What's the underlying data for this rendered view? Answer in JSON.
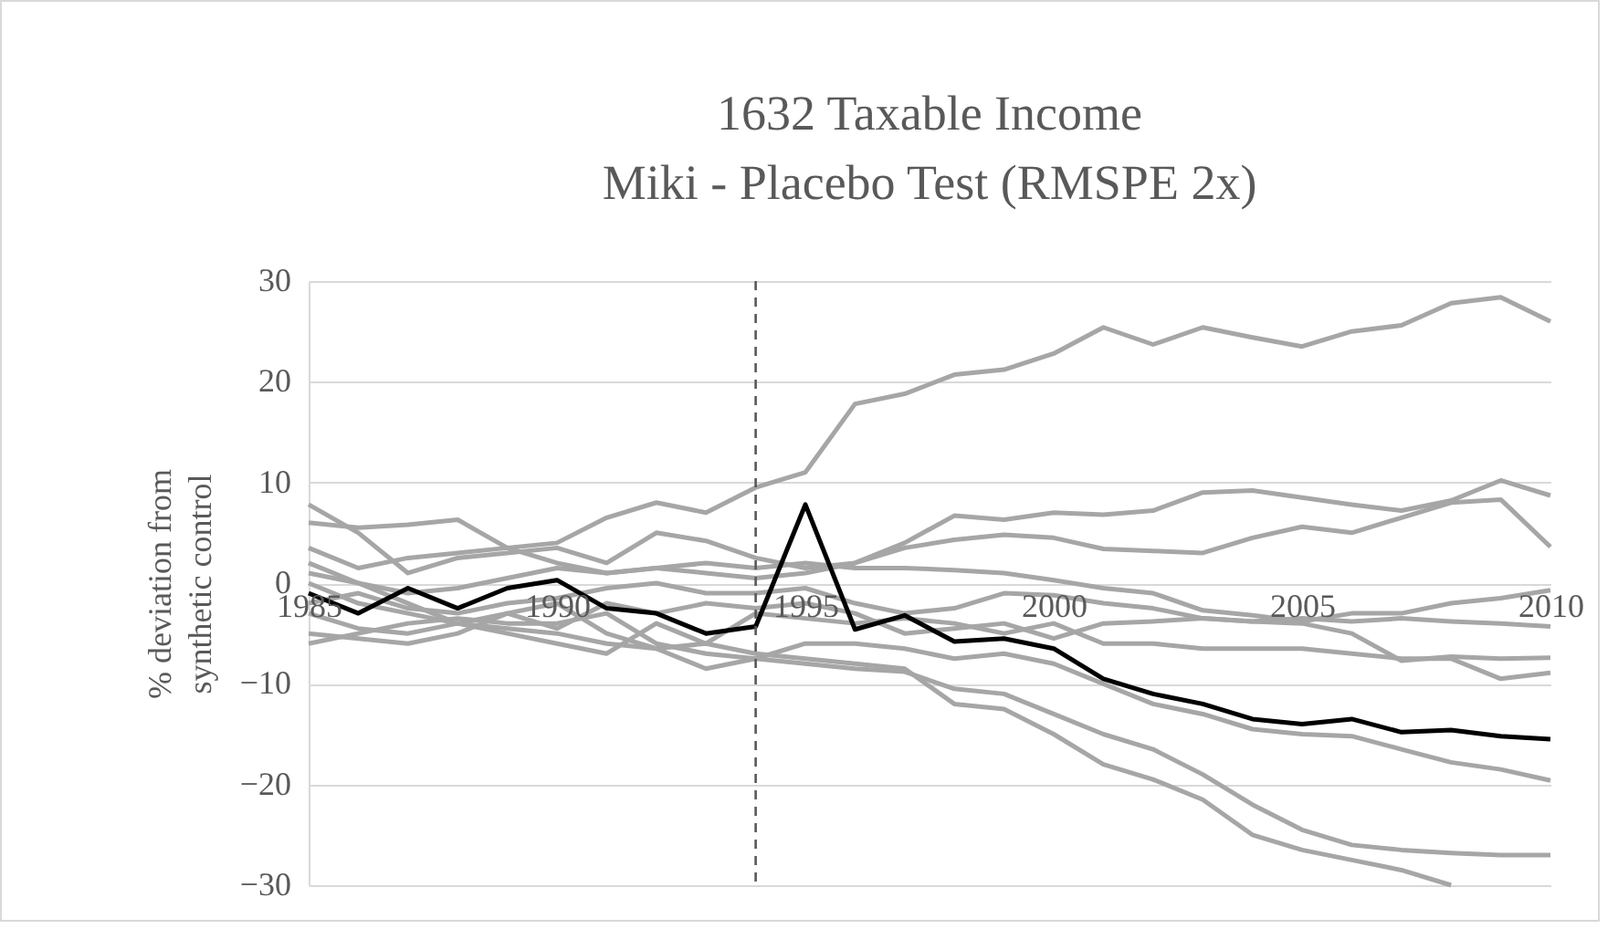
{
  "chart_data": {
    "type": "line",
    "title": "1632 Taxable Income\nMiki - Placebo Test (RMSPE 2x)",
    "ylabel": "% deviation from synthetic control",
    "x": [
      1985,
      1986,
      1987,
      1988,
      1989,
      1990,
      1991,
      1992,
      1993,
      1994,
      1995,
      1996,
      1997,
      1998,
      1999,
      2000,
      2001,
      2002,
      2003,
      2004,
      2005,
      2006,
      2007,
      2008,
      2009,
      2010
    ],
    "xlim": [
      1985,
      2010
    ],
    "xticks": [
      1985,
      1990,
      1995,
      2000,
      2005,
      2010
    ],
    "ylim": [
      -30,
      30
    ],
    "yticks": [
      -30,
      -20,
      -10,
      0,
      10,
      20,
      30
    ],
    "grid": "y",
    "legend": false,
    "line_style": "solid",
    "marker": "none",
    "series": [
      {
        "color": "#a6a6a6",
        "values": [
          3.5,
          1.5,
          2.5,
          3,
          3.5,
          4,
          6.5,
          8,
          7,
          9.5,
          11,
          17.8,
          18.8,
          20.7,
          21.2,
          22.8,
          25.4,
          23.7,
          25.4,
          24.4,
          23.5,
          25,
          25.6,
          27.8,
          28.4,
          26
        ]
      },
      {
        "color": "#a6a6a6",
        "values": [
          6,
          5.5,
          5.8,
          6.3,
          3.5,
          2,
          1,
          1.5,
          1,
          0.5,
          1,
          2,
          4,
          6.7,
          6.3,
          7,
          6.8,
          7.2,
          9,
          9.2,
          8.5,
          7.8,
          7.2,
          8.2,
          10.2,
          8.7
        ]
      },
      {
        "color": "#a6a6a6",
        "values": [
          7.8,
          5,
          1,
          2.5,
          3,
          3.5,
          2,
          5,
          4.2,
          2.5,
          1.5,
          2,
          3.5,
          4.3,
          4.8,
          4.5,
          3.4,
          3.2,
          3,
          4.5,
          5.6,
          5,
          6.5,
          8,
          8.3,
          3.6
        ]
      },
      {
        "color": "#a6a6a6",
        "values": [
          1,
          0,
          -1,
          -0.5,
          0.5,
          1.5,
          1,
          1.5,
          2,
          1.5,
          2,
          1.5,
          1.5,
          1.3,
          1,
          0.3,
          -0.5,
          -1,
          -2.7,
          -3.2,
          -3.8,
          -3,
          -3,
          -2,
          -1.5,
          -0.7
        ]
      },
      {
        "color": "#a6a6a6",
        "values": [
          -2,
          -1,
          -2.5,
          -3,
          -2,
          -1.5,
          -0.5,
          0,
          -1,
          -1,
          -0.5,
          -2,
          -3,
          -2.5,
          -1,
          -1.2,
          -2,
          -2.5,
          -3.5,
          -3.8,
          -3.5,
          -3.8,
          -3.5,
          -3.8,
          -4,
          -4.3
        ]
      },
      {
        "color": "#a6a6a6",
        "values": [
          0,
          -2,
          -3,
          -4,
          -3,
          -4.5,
          -2,
          -3,
          -2,
          -2.5,
          -2,
          -3,
          -5,
          -4.5,
          -4,
          -5.5,
          -4,
          -3.8,
          -3.5,
          -3.8,
          -4,
          -5,
          -7.7,
          -7.3,
          -7.5,
          -7.4
        ]
      },
      {
        "color": "#a6a6a6",
        "values": [
          -3,
          -4.5,
          -5,
          -4,
          -5,
          -6,
          -7,
          -4,
          -6,
          -3,
          -3.5,
          -4,
          -3.5,
          -4,
          -5,
          -4,
          -6,
          -6,
          -6.5,
          -6.5,
          -6.5,
          -7,
          -7.5,
          -7.5,
          -9.5,
          -8.9
        ]
      },
      {
        "color": "#a6a6a6",
        "values": [
          -5,
          -5.5,
          -6,
          -5,
          -3,
          -2,
          -5,
          -6.5,
          -8.5,
          -7.5,
          -6,
          -6,
          -6.5,
          -7.5,
          -7,
          -8,
          -10,
          -12,
          -13,
          -14.5,
          -15,
          -15.2,
          -16.5,
          -17.8,
          -18.5,
          -19.6
        ]
      },
      {
        "color": "#a6a6a6",
        "values": [
          -6,
          -5,
          -4,
          -3.5,
          -4,
          -4,
          -3,
          -6,
          -7,
          -7.5,
          -8,
          -8.5,
          -8.8,
          -10.5,
          -11,
          -13,
          -15,
          -16.5,
          -19,
          -22,
          -24.5,
          -26,
          -26.5,
          -26.8,
          -27,
          -27
        ]
      },
      {
        "color": "#a6a6a6",
        "values": [
          2,
          0,
          -2,
          -4,
          -4.5,
          -5,
          -6,
          -6.5,
          -6,
          -7,
          -7.5,
          -8,
          -8.5,
          -12,
          -12.5,
          -15,
          -18,
          -19.5,
          -21.5,
          -25,
          -26.5,
          -27.5,
          -28.5,
          -30,
          null,
          null
        ]
      },
      {
        "color": "#000000",
        "values": [
          -1,
          -3,
          -0.5,
          -2.5,
          -0.5,
          0.3,
          -2.5,
          -3,
          -5,
          -4.3,
          7.8,
          -4.6,
          -3.2,
          -5.8,
          -5.5,
          -6.5,
          -9.5,
          -11,
          -12,
          -13.5,
          -14,
          -13.5,
          -14.8,
          -14.6,
          -15.2,
          -15.5
        ]
      }
    ],
    "ref_lines": [
      {
        "axis": "x",
        "value": 1994,
        "color": "#595959",
        "line_style": "dashed"
      }
    ]
  }
}
